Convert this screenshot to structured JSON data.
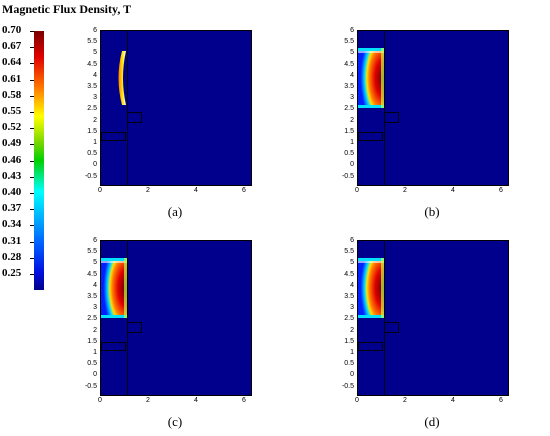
{
  "legend": {
    "title": "Magnetic Flux Density, T",
    "ticks": [
      "0.70",
      "0.67",
      "0.64",
      "0.61",
      "0.58",
      "0.55",
      "0.52",
      "0.49",
      "0.46",
      "0.43",
      "0.40",
      "0.37",
      "0.34",
      "0.31",
      "0.28",
      "0.25"
    ]
  },
  "axes": {
    "y_ticks": [
      "6",
      "5.5",
      "5",
      "4.5",
      "4",
      "3.5",
      "3",
      "2.5",
      "2",
      "1.5",
      "1",
      "0.5",
      "0",
      "-0.5"
    ],
    "x_ticks": [
      "0",
      "2",
      "4",
      "6"
    ]
  },
  "panels": [
    {
      "caption": "(a)",
      "field": "thin"
    },
    {
      "caption": "(b)",
      "field": "full"
    },
    {
      "caption": "(c)",
      "field": "full"
    },
    {
      "caption": "(d)",
      "field": "full"
    }
  ],
  "colors": {
    "background_field": "#00008c",
    "peak_field": "#c00000"
  }
}
